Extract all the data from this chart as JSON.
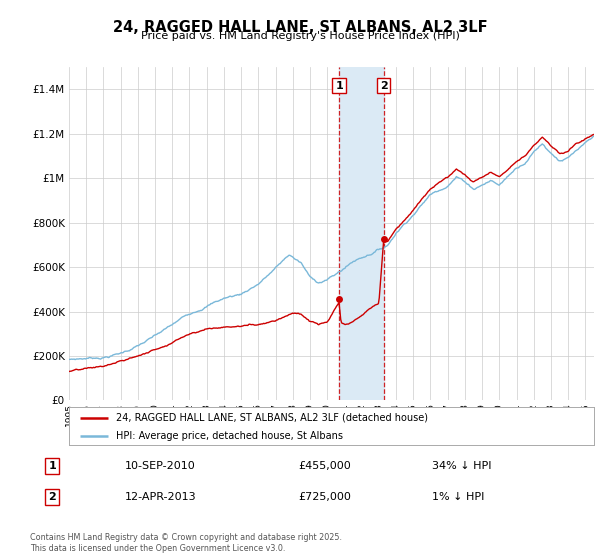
{
  "title": "24, RAGGED HALL LANE, ST ALBANS, AL2 3LF",
  "subtitle": "Price paid vs. HM Land Registry's House Price Index (HPI)",
  "legend_line1": "24, RAGGED HALL LANE, ST ALBANS, AL2 3LF (detached house)",
  "legend_line2": "HPI: Average price, detached house, St Albans",
  "footer": "Contains HM Land Registry data © Crown copyright and database right 2025.\nThis data is licensed under the Open Government Licence v3.0.",
  "transaction1_date": "10-SEP-2010",
  "transaction1_price": "£455,000",
  "transaction1_hpi": "34% ↓ HPI",
  "transaction2_date": "12-APR-2013",
  "transaction2_price": "£725,000",
  "transaction2_hpi": "1% ↓ HPI",
  "transaction1_x": 2010.69,
  "transaction2_x": 2013.28,
  "transaction1_y": 455000,
  "transaction2_y": 725000,
  "hpi_color": "#7ab8d9",
  "price_color": "#cc0000",
  "highlight_color": "#dbeaf5",
  "transaction_line_color": "#cc0000",
  "ylim": [
    0,
    1500000
  ],
  "xlim": [
    1995.0,
    2025.5
  ],
  "background_color": "#ffffff",
  "grid_color": "#cccccc"
}
